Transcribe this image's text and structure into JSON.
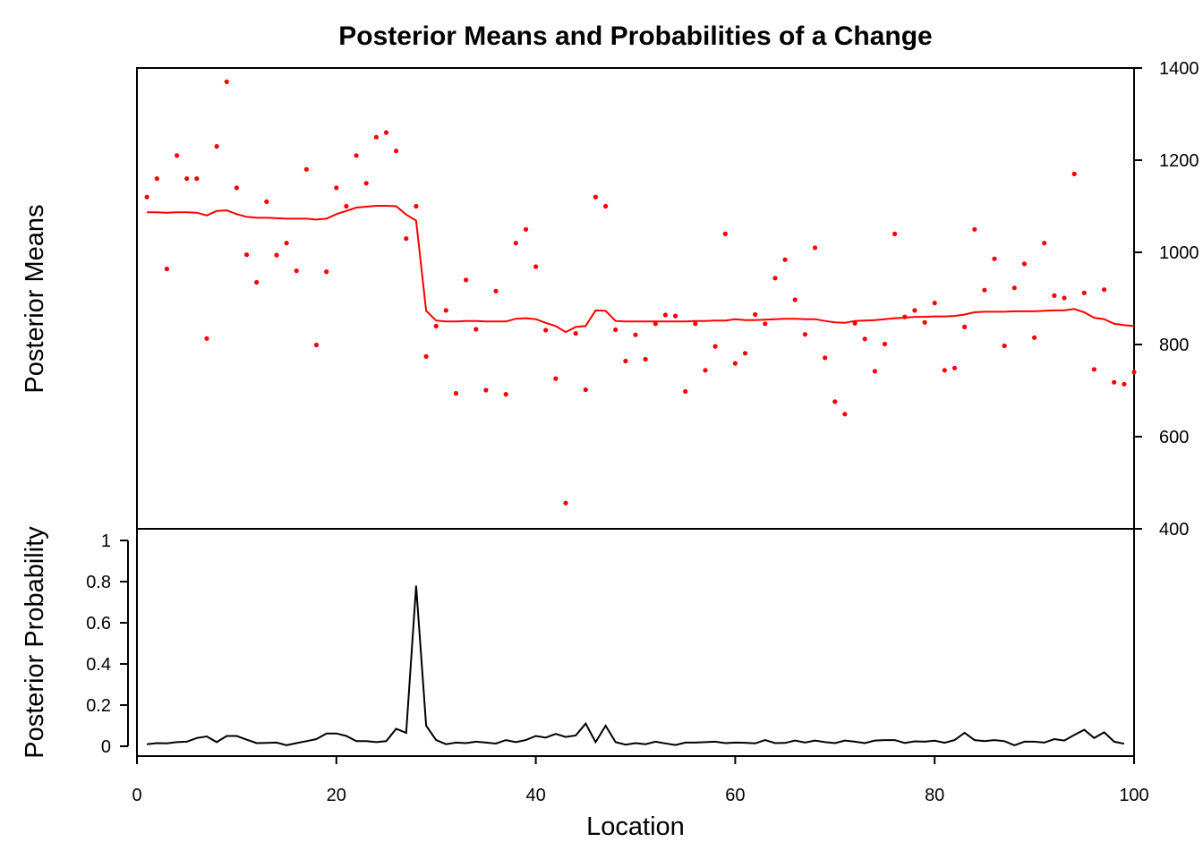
{
  "chart_data": [
    {
      "type": "scatter",
      "title": "Posterior Means and Probabilities of a Change",
      "ylabel": "Posterior Means",
      "xlabel": "",
      "xlim": [
        0,
        100
      ],
      "ylim": [
        400,
        1400
      ],
      "y_axis_side": "right",
      "y_ticks": [
        "400",
        "600",
        "800",
        "1000",
        "1200",
        "1400"
      ],
      "point_color": "#ff0000",
      "line_color": "#ff0000",
      "x": [
        1,
        2,
        3,
        4,
        5,
        6,
        7,
        8,
        9,
        10,
        11,
        12,
        13,
        14,
        15,
        16,
        17,
        18,
        19,
        20,
        21,
        22,
        23,
        24,
        25,
        26,
        27,
        28,
        29,
        30,
        31,
        32,
        33,
        34,
        35,
        36,
        37,
        38,
        39,
        40,
        41,
        42,
        43,
        44,
        45,
        46,
        47,
        48,
        49,
        50,
        51,
        52,
        53,
        54,
        55,
        56,
        57,
        58,
        59,
        60,
        61,
        62,
        63,
        64,
        65,
        66,
        67,
        68,
        69,
        70,
        71,
        72,
        73,
        74,
        75,
        76,
        77,
        78,
        79,
        80,
        81,
        82,
        83,
        84,
        85,
        86,
        87,
        88,
        89,
        90,
        91,
        92,
        93,
        94,
        95,
        96,
        97,
        98,
        99,
        100
      ],
      "observed": [
        1120,
        1160,
        964,
        1210,
        1160,
        1160,
        813,
        1230,
        1370,
        1140,
        995,
        935,
        1110,
        994,
        1020,
        960,
        1180,
        799,
        958,
        1140,
        1100,
        1210,
        1150,
        1250,
        1260,
        1220,
        1030,
        1100,
        774,
        840,
        874,
        694,
        940,
        833,
        701,
        916,
        692,
        1020,
        1050,
        969,
        831,
        726,
        456,
        824,
        702,
        1120,
        1100,
        832,
        764,
        821,
        768,
        845,
        864,
        862,
        698,
        845,
        744,
        796,
        1040,
        759,
        781,
        865,
        845,
        944,
        984,
        897,
        822,
        1010,
        771,
        676,
        649,
        846,
        812,
        742,
        801,
        1040,
        860,
        874,
        848,
        890,
        744,
        749,
        838,
        1050,
        918,
        986,
        797,
        923,
        975,
        815,
        1020,
        906,
        901,
        1170,
        912,
        746,
        919,
        718,
        714,
        740
      ],
      "posterior_mean": [
        1087,
        1087,
        1086,
        1087,
        1087,
        1086,
        1080,
        1090,
        1091,
        1083,
        1077,
        1075,
        1075,
        1074,
        1073,
        1073,
        1073,
        1071,
        1073,
        1083,
        1090,
        1097,
        1099,
        1101,
        1101,
        1100,
        1082,
        1069,
        873,
        852,
        850,
        850,
        851,
        851,
        850,
        850,
        850,
        856,
        857,
        855,
        847,
        840,
        827,
        838,
        840,
        874,
        873,
        851,
        850,
        850,
        850,
        850,
        850,
        850,
        850,
        851,
        851,
        852,
        852,
        855,
        853,
        853,
        854,
        855,
        856,
        856,
        855,
        855,
        851,
        848,
        847,
        851,
        852,
        853,
        855,
        857,
        858,
        860,
        860,
        861,
        861,
        862,
        865,
        870,
        871,
        871,
        871,
        872,
        872,
        872,
        873,
        874,
        874,
        877,
        870,
        858,
        855,
        845,
        842,
        840
      ]
    },
    {
      "type": "line",
      "title": "",
      "ylabel": "Posterior Probability",
      "xlabel": "Location",
      "xlim": [
        0,
        100
      ],
      "ylim": [
        0,
        1
      ],
      "y_ticks": [
        "0",
        "0.2",
        "0.4",
        "0.6",
        "0.8",
        "1"
      ],
      "x_ticks": [
        "0",
        "20",
        "40",
        "60",
        "80",
        "100"
      ],
      "line_color": "#000000",
      "x": [
        1,
        2,
        3,
        4,
        5,
        6,
        7,
        8,
        9,
        10,
        11,
        12,
        13,
        14,
        15,
        16,
        17,
        18,
        19,
        20,
        21,
        22,
        23,
        24,
        25,
        26,
        27,
        28,
        29,
        30,
        31,
        32,
        33,
        34,
        35,
        36,
        37,
        38,
        39,
        40,
        41,
        42,
        43,
        44,
        45,
        46,
        47,
        48,
        49,
        50,
        51,
        52,
        53,
        54,
        55,
        56,
        57,
        58,
        59,
        60,
        61,
        62,
        63,
        64,
        65,
        66,
        67,
        68,
        69,
        70,
        71,
        72,
        73,
        74,
        75,
        76,
        77,
        78,
        79,
        80,
        81,
        82,
        83,
        84,
        85,
        86,
        87,
        88,
        89,
        90,
        91,
        92,
        93,
        94,
        95,
        96,
        97,
        98,
        99
      ],
      "values": [
        0.01,
        0.015,
        0.014,
        0.02,
        0.022,
        0.04,
        0.048,
        0.02,
        0.05,
        0.05,
        0.032,
        0.015,
        0.016,
        0.018,
        0.005,
        0.015,
        0.025,
        0.035,
        0.062,
        0.062,
        0.05,
        0.025,
        0.025,
        0.02,
        0.025,
        0.085,
        0.065,
        0.78,
        0.1,
        0.03,
        0.01,
        0.018,
        0.015,
        0.022,
        0.018,
        0.013,
        0.03,
        0.02,
        0.03,
        0.05,
        0.042,
        0.06,
        0.045,
        0.052,
        0.11,
        0.02,
        0.1,
        0.02,
        0.008,
        0.015,
        0.01,
        0.022,
        0.014,
        0.006,
        0.018,
        0.018,
        0.02,
        0.022,
        0.015,
        0.018,
        0.017,
        0.014,
        0.03,
        0.015,
        0.016,
        0.028,
        0.018,
        0.028,
        0.02,
        0.015,
        0.028,
        0.022,
        0.015,
        0.028,
        0.03,
        0.03,
        0.016,
        0.024,
        0.022,
        0.027,
        0.017,
        0.03,
        0.065,
        0.03,
        0.025,
        0.03,
        0.025,
        0.005,
        0.022,
        0.022,
        0.018,
        0.035,
        0.028,
        0.055,
        0.08,
        0.04,
        0.068,
        0.022,
        0.012
      ]
    }
  ]
}
